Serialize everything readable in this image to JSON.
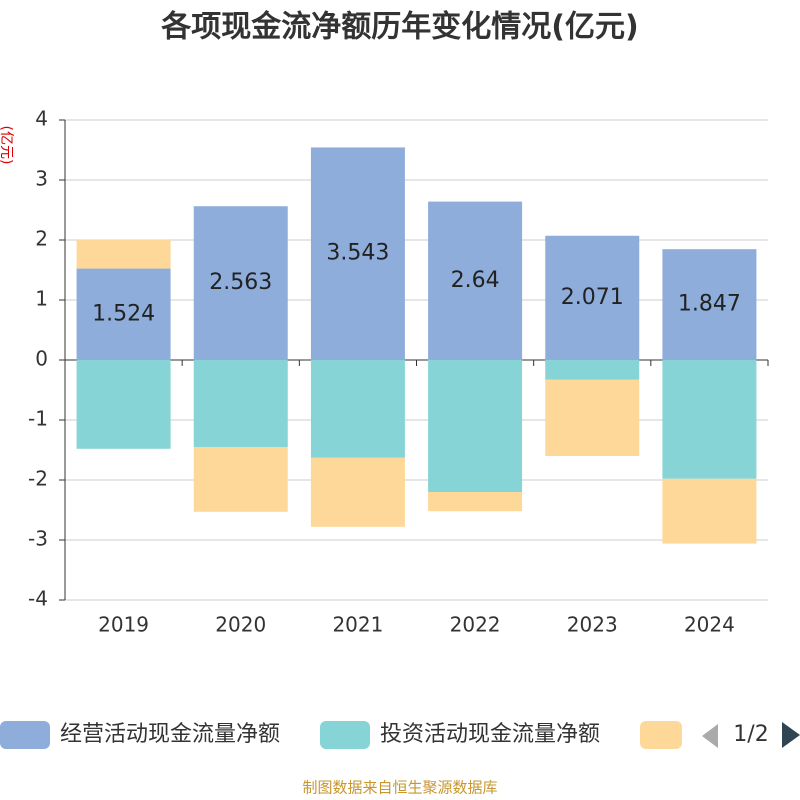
{
  "chart_data": {
    "type": "bar",
    "stacked": true,
    "title": "各项现金流净额历年变化情况(亿元)",
    "y_label": "(亿元)",
    "categories": [
      "2019",
      "2020",
      "2021",
      "2022",
      "2023",
      "2024"
    ],
    "series": [
      {
        "name": "经营活动现金流量净额",
        "color": "#8eaddb",
        "values": [
          1.524,
          2.563,
          3.543,
          2.64,
          2.071,
          1.847
        ]
      },
      {
        "name": "投资活动现金流量净额",
        "color": "#86d4d6",
        "values": [
          -1.48,
          -1.45,
          -1.63,
          -2.2,
          -0.33,
          -1.98
        ]
      },
      {
        "color": "#fed898",
        "values": [
          0.48,
          -1.08,
          -1.15,
          -0.32,
          -1.27,
          -1.08
        ]
      }
    ],
    "ylim": [
      -4,
      4
    ],
    "yticks": [
      -4,
      -3,
      -2,
      -1,
      0,
      1,
      2,
      3,
      4
    ],
    "grid": true,
    "legend_page": "1/2",
    "source": "制图数据来自恒生聚源数据库"
  }
}
